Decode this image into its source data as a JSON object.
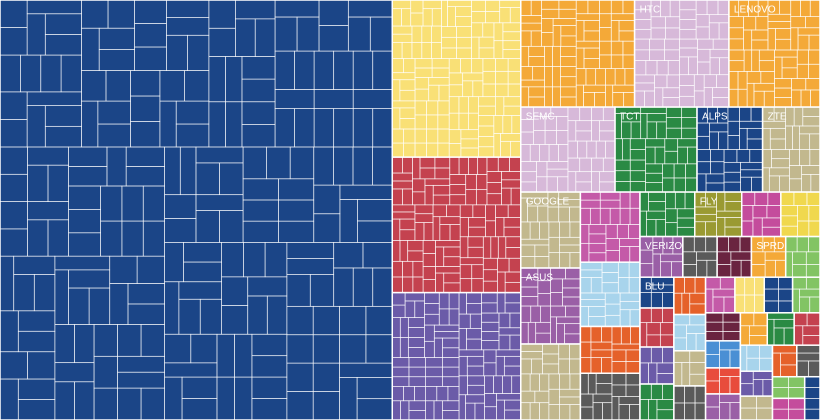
{
  "chart_data": {
    "type": "treemap",
    "categories": [
      null,
      null,
      null,
      null,
      null,
      "HTC",
      "LENOVO",
      "SEMC",
      "TCT",
      "ALPS",
      "ZTE",
      "GOOGLE",
      "ASUS",
      null,
      null,
      null,
      null,
      null,
      null,
      "FLY",
      null,
      null,
      "VERIZON",
      null,
      null,
      "SPRD",
      null,
      "BLU",
      null,
      null,
      null,
      null,
      null,
      null,
      null,
      null,
      null,
      null,
      null,
      null,
      null,
      null,
      null,
      null,
      null,
      null,
      null,
      null,
      null,
      null,
      null,
      null,
      null,
      null
    ],
    "values": [
      47.3,
      5.8,
      5.0,
      4.7,
      3.5,
      2.9,
      2.8,
      2.3,
      2.0,
      1.6,
      1.4,
      1.3,
      1.3,
      1.3,
      1.2,
      1.1,
      0.8,
      0.8,
      0.7,
      0.6,
      0.5,
      0.5,
      0.5,
      0.4,
      0.4,
      0.4,
      0.4,
      0.3,
      0.38,
      0.36,
      0.35,
      0.34,
      0.33,
      0.32,
      0.31,
      0.3,
      0.3,
      0.29,
      0.28,
      0.28,
      0.27,
      0.26,
      0.26,
      0.25,
      0.25,
      0.24,
      0.24,
      0.23,
      0.22,
      0.22,
      0.21,
      0.2,
      0.2,
      0.19
    ],
    "colors": [
      "#1b4587",
      "#f9e076",
      "#c4424f",
      "#6b5ba8",
      "#f4a938",
      "#d7b9d9",
      "#f4a938",
      "#d7b9d9",
      "#2a8a44",
      "#1b4587",
      "#c2b88e",
      "#c2b88e",
      "#9a5fa6",
      "#c2b88e",
      "#c45aa8",
      "#a8d4ec",
      "#e5612a",
      "#5a5a5a",
      "#2a8a44",
      "#9a9a32",
      "#c44c9c",
      "#f0d84e",
      "#9a5fa6",
      "#5a5a5a",
      "#6a2440",
      "#f4a938",
      "#82c464",
      "#1b4587",
      "#c4424f",
      "#6b5ba8",
      "#2a8a44",
      "#e5612a",
      "#a8d4ec",
      "#c2b88e",
      "#5a5a5a",
      "#c45aa8",
      "#f9e076",
      "#1b4587",
      "#82c464",
      "#6a2440",
      "#4a8fd4",
      "#e84c3c",
      "#9a5fa6",
      "#f4a938",
      "#2a8a44",
      "#c4424f",
      "#a8d4ec",
      "#6b5ba8",
      "#c2b88e",
      "#e5612a",
      "#5a5a5a",
      "#82c464",
      "#c44c9c",
      "#1b4587"
    ]
  }
}
